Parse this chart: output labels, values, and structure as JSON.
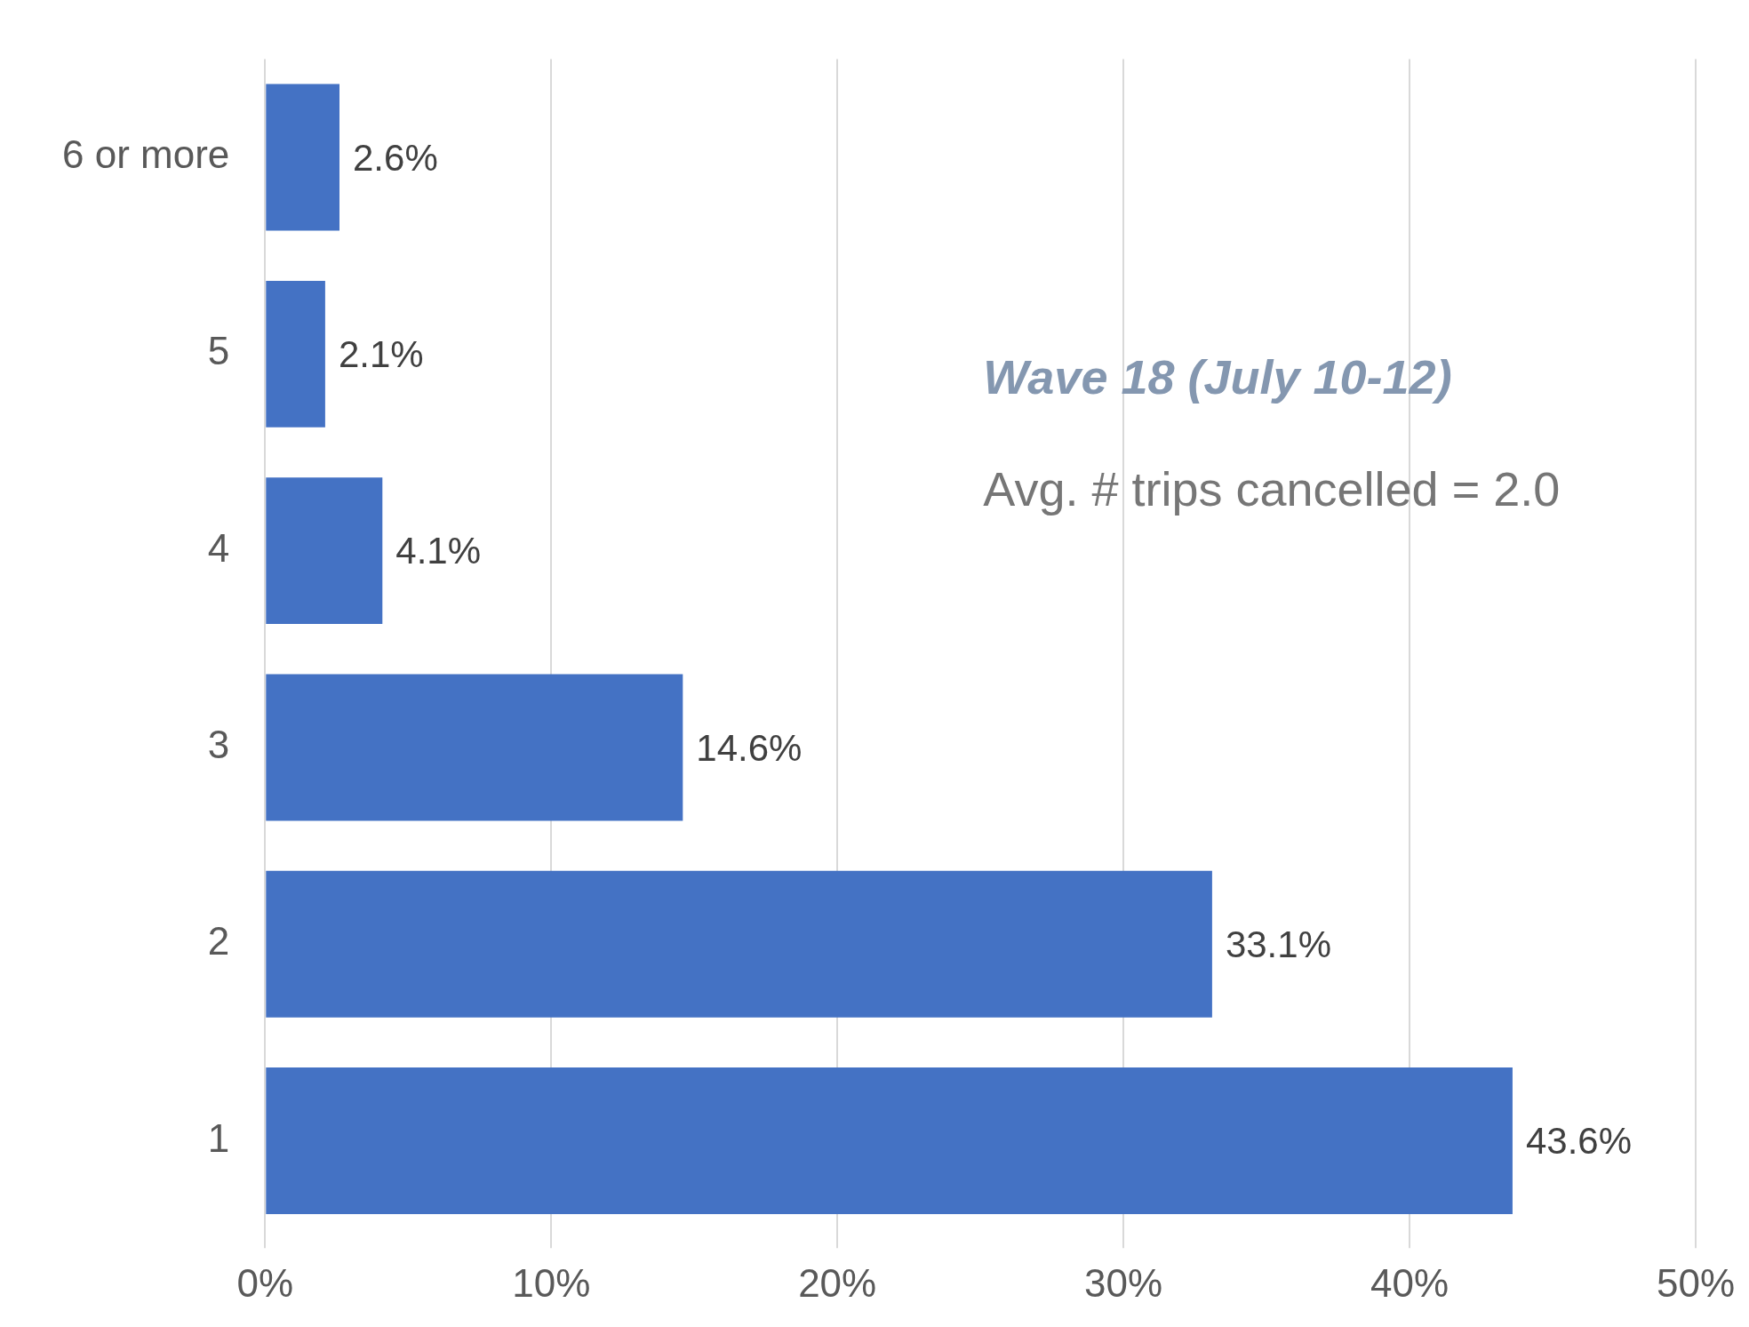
{
  "chart_data": {
    "type": "bar",
    "orientation": "horizontal",
    "categories": [
      "6 or more",
      "5",
      "4",
      "3",
      "2",
      "1"
    ],
    "values": [
      2.6,
      2.1,
      4.1,
      14.6,
      33.1,
      43.6
    ],
    "value_labels": [
      "2.6%",
      "2.1%",
      "4.1%",
      "14.6%",
      "33.1%",
      "43.6%"
    ],
    "color": "#4472c4",
    "xlim": [
      0,
      50
    ],
    "xticks": [
      {
        "value": 0,
        "label": "0%"
      },
      {
        "value": 10,
        "label": "10%"
      },
      {
        "value": 20,
        "label": "20%"
      },
      {
        "value": 30,
        "label": "30%"
      },
      {
        "value": 40,
        "label": "40%"
      },
      {
        "value": 50,
        "label": "50%"
      }
    ],
    "grid": "x",
    "annotations": [
      "Wave 18 (July 10-12)",
      "Avg. # trips cancelled = 2.0"
    ]
  }
}
